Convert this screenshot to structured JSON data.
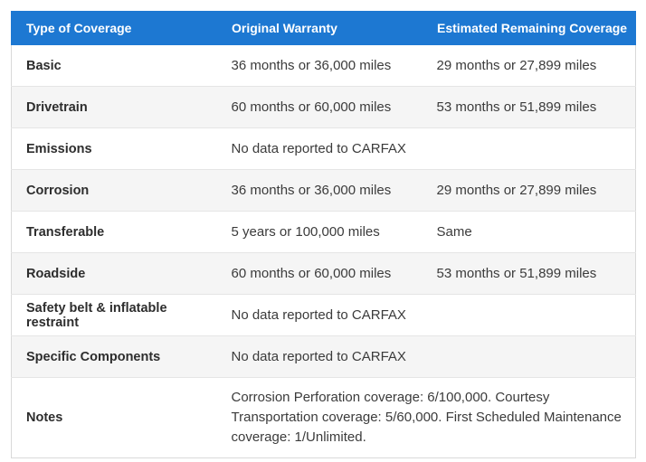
{
  "colors": {
    "header_bg": "#1d78d2",
    "header_text": "#ffffff",
    "row_alt_bg": "#f5f5f5",
    "row_bg": "#ffffff",
    "border": "#d9d9d9",
    "label_text": "#2d2d2d",
    "value_text": "#3b3b3b"
  },
  "table": {
    "headers": [
      "Type of Coverage",
      "Original Warranty",
      "Estimated Remaining Coverage"
    ],
    "rows": [
      {
        "type": "Basic",
        "original": "36 months or 36,000 miles",
        "remaining": "29 months or 27,899 miles"
      },
      {
        "type": "Drivetrain",
        "original": "60 months or 60,000 miles",
        "remaining": "53 months or 51,899 miles"
      },
      {
        "type": "Emissions",
        "original": "No data reported to CARFAX",
        "remaining": ""
      },
      {
        "type": "Corrosion",
        "original": "36 months or 36,000 miles",
        "remaining": "29 months or 27,899 miles"
      },
      {
        "type": "Transferable",
        "original": "5 years or 100,000 miles",
        "remaining": "Same"
      },
      {
        "type": "Roadside",
        "original": "60 months or 60,000 miles",
        "remaining": "53 months or 51,899 miles"
      },
      {
        "type": "Safety belt & inflatable restraint",
        "original": "No data reported to CARFAX",
        "remaining": ""
      },
      {
        "type": "Specific Components",
        "original": "No data reported to CARFAX",
        "remaining": ""
      },
      {
        "type": "Notes",
        "original": "Corrosion Perforation coverage: 6/100,000. Courtesy Transportation coverage: 5/60,000. First Scheduled Maintenance coverage: 1/Unlimited.",
        "remaining": null,
        "colspan": true
      }
    ]
  }
}
